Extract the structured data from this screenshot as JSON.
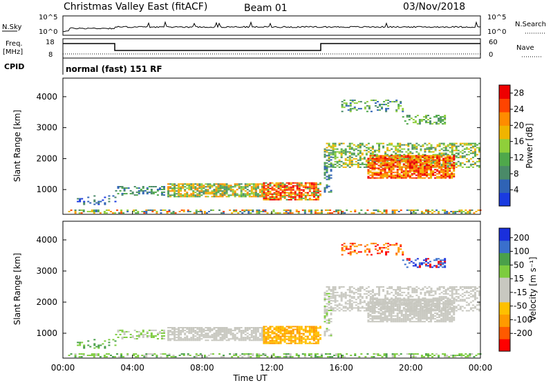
{
  "header": {
    "title": "Christmas Valley East (fitACF)",
    "beam": "Beam 01",
    "date": "03/Nov/2018"
  },
  "top_panels": {
    "nsky_label": "N.Sky",
    "nsky_ticks": [
      "10^5",
      "10^0"
    ],
    "nsearch_label": "N.Search",
    "nsearch_ticks": [
      "10^5",
      "10^0"
    ],
    "freq_label_1": "Freq.",
    "freq_label_2": "[MHz]",
    "freq_ticks": [
      "18",
      "8"
    ],
    "nave_label": "Nave",
    "nave_ticks": [
      "60",
      "0"
    ],
    "cpid_label": "CPID",
    "cpid_text": "normal (fast) 151 RF"
  },
  "colors": {
    "power_scale": [
      "#1a3be0",
      "#2f63b5",
      "#4a8a68",
      "#4fa84b",
      "#8fcf3a",
      "#f0b400",
      "#ff8c00",
      "#ff4400",
      "#ee0000"
    ],
    "velocity_scale": [
      "#ff0000",
      "#ff5a00",
      "#ff9a00",
      "#ffc000",
      "#c8c8c0",
      "#c8c8c0",
      "#7dcc3f",
      "#4aa04a",
      "#3a6fcc",
      "#1a2fdc"
    ]
  },
  "chart_data": [
    {
      "type": "heatmap",
      "title": "Power",
      "xlabel": "Time UT",
      "ylabel": "Slant Range [km]",
      "x_ticks": [
        "00:00",
        "04:00",
        "08:00",
        "12:00",
        "16:00",
        "20:00",
        "00:00"
      ],
      "y_ticks": [
        1000,
        2000,
        3000,
        4000
      ],
      "ylim": [
        200,
        4600
      ],
      "xlim_hours": [
        0,
        24
      ],
      "colorbar_label": "Power [dB]",
      "colorbar_ticks": [
        4,
        8,
        12,
        16,
        20,
        24,
        28
      ],
      "colorbar_range": [
        0,
        30
      ]
    },
    {
      "type": "heatmap",
      "title": "Velocity",
      "xlabel": "Time UT",
      "ylabel": "Slant Range [km]",
      "x_ticks": [
        "00:00",
        "04:00",
        "08:00",
        "12:00",
        "16:00",
        "20:00",
        "00:00"
      ],
      "y_ticks": [
        1000,
        2000,
        3000,
        4000
      ],
      "ylim": [
        200,
        4600
      ],
      "xlim_hours": [
        0,
        24
      ],
      "colorbar_label": "Velocity [m s⁻¹]",
      "colorbar_ticks": [
        200,
        100,
        50,
        15,
        -15,
        -50,
        -100,
        -200
      ],
      "colorbar_range": [
        -250,
        250
      ]
    }
  ],
  "labels": {
    "xlabel": "Time UT",
    "ylabel": "Slant Range [km]",
    "power_cb": "Power [dB]",
    "velocity_cb": "Velocity [m s⁻¹]"
  }
}
